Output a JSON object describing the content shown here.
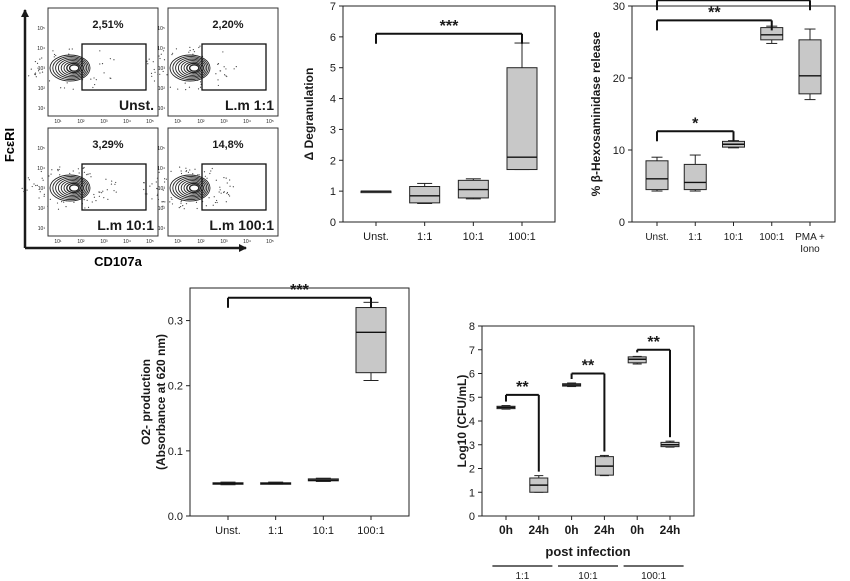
{
  "flow": {
    "y_axis_label": "FcεRI",
    "x_axis_label": "CD107a",
    "tick_labels": [
      "10¹",
      "10²",
      "10³",
      "10⁴",
      "10⁵"
    ],
    "panels": [
      {
        "label": "Unst.",
        "percent": "2,51%"
      },
      {
        "label": "L.m 1:1",
        "percent": "2,20%"
      },
      {
        "label": "L.m 10:1",
        "percent": "3,29%"
      },
      {
        "label": "L.m 100:1",
        "percent": "14,8%"
      }
    ]
  },
  "chart_data": [
    {
      "type": "box",
      "title": "",
      "xlabel": "",
      "ylabel": "Δ Degranulation",
      "categories": [
        "Unst.",
        "1:1",
        "10:1",
        "100:1"
      ],
      "ylim": [
        0,
        7
      ],
      "yticks": [
        0,
        1,
        2,
        3,
        4,
        5,
        6,
        7
      ],
      "boxes": [
        {
          "min": 1.0,
          "q1": 1.0,
          "median": 1.0,
          "q3": 1.0,
          "max": 1.0
        },
        {
          "min": 0.6,
          "q1": 0.62,
          "median": 0.85,
          "q3": 1.15,
          "max": 1.25
        },
        {
          "min": 0.75,
          "q1": 0.78,
          "median": 1.05,
          "q3": 1.35,
          "max": 1.4
        },
        {
          "min": 1.7,
          "q1": 1.7,
          "median": 2.1,
          "q3": 5.0,
          "max": 5.8
        }
      ],
      "significance": [
        {
          "from": "Unst.",
          "to": "100:1",
          "label": "***",
          "y": 6.1
        }
      ]
    },
    {
      "type": "box",
      "title": "",
      "xlabel": "",
      "ylabel": "% β-Hexosaminidase release",
      "categories": [
        "Unst.",
        "1:1",
        "10:1",
        "100:1",
        "PMA +\nIono"
      ],
      "ylim": [
        0,
        30
      ],
      "yticks": [
        0,
        10,
        20,
        30
      ],
      "boxes": [
        {
          "min": 4.3,
          "q1": 4.5,
          "median": 6.0,
          "q3": 8.5,
          "max": 9.0
        },
        {
          "min": 4.3,
          "q1": 4.5,
          "median": 5.5,
          "q3": 8.0,
          "max": 9.3
        },
        {
          "min": 10.3,
          "q1": 10.4,
          "median": 10.8,
          "q3": 11.2,
          "max": 11.3
        },
        {
          "min": 24.8,
          "q1": 25.3,
          "median": 26.0,
          "q3": 27.0,
          "max": 27.2
        },
        {
          "min": 17.0,
          "q1": 17.8,
          "median": 20.3,
          "q3": 25.3,
          "max": 26.8
        }
      ],
      "significance": [
        {
          "from": "Unst.",
          "to": "10:1",
          "label": "*",
          "y": 12.6
        },
        {
          "from": "Unst.",
          "to": "100:1",
          "label": "**",
          "y": 28.0
        },
        {
          "from": "Unst.",
          "to": "PMA +\nIono",
          "label": "**",
          "y": 30.8
        }
      ]
    },
    {
      "type": "box",
      "title": "",
      "xlabel": "",
      "ylabel": "O2- production\n(Absorbance at 620 nm)",
      "categories": [
        "Unst.",
        "1:1",
        "10:1",
        "100:1"
      ],
      "ylim": [
        0,
        0.35
      ],
      "yticks": [
        0.0,
        0.1,
        0.2,
        0.3
      ],
      "boxes": [
        {
          "min": 0.048,
          "q1": 0.049,
          "median": 0.05,
          "q3": 0.051,
          "max": 0.052
        },
        {
          "min": 0.049,
          "q1": 0.05,
          "median": 0.05,
          "q3": 0.051,
          "max": 0.052
        },
        {
          "min": 0.053,
          "q1": 0.054,
          "median": 0.055,
          "q3": 0.057,
          "max": 0.058
        },
        {
          "min": 0.208,
          "q1": 0.22,
          "median": 0.282,
          "q3": 0.32,
          "max": 0.328
        }
      ],
      "significance": [
        {
          "from": "Unst.",
          "to": "100:1",
          "label": "***",
          "y": 0.335
        }
      ]
    },
    {
      "type": "box",
      "title": "",
      "xlabel": "post infection",
      "ylabel": "Log10 (CFU/mL)",
      "categories": [
        "0h",
        "24h",
        "0h",
        "24h",
        "0h",
        "24h"
      ],
      "groups": [
        "1:1",
        "10:1",
        "100:1"
      ],
      "ylim": [
        0,
        8
      ],
      "yticks": [
        0,
        1,
        2,
        3,
        4,
        5,
        6,
        7,
        8
      ],
      "boxes": [
        {
          "min": 4.5,
          "q1": 4.52,
          "median": 4.57,
          "q3": 4.62,
          "max": 4.65
        },
        {
          "min": 1.0,
          "q1": 1.0,
          "median": 1.3,
          "q3": 1.6,
          "max": 1.7
        },
        {
          "min": 5.45,
          "q1": 5.47,
          "median": 5.52,
          "q3": 5.57,
          "max": 5.6
        },
        {
          "min": 1.7,
          "q1": 1.72,
          "median": 2.1,
          "q3": 2.5,
          "max": 2.55
        },
        {
          "min": 6.4,
          "q1": 6.45,
          "median": 6.6,
          "q3": 6.7,
          "max": 6.72
        },
        {
          "min": 2.9,
          "q1": 2.92,
          "median": 3.0,
          "q3": 3.1,
          "max": 3.15
        }
      ],
      "significance": [
        {
          "from": 0,
          "to": 1,
          "label": "**",
          "y": 5.1
        },
        {
          "from": 2,
          "to": 3,
          "label": "**",
          "y": 6.0
        },
        {
          "from": 4,
          "to": 5,
          "label": "**",
          "y": 7.0
        }
      ]
    }
  ]
}
